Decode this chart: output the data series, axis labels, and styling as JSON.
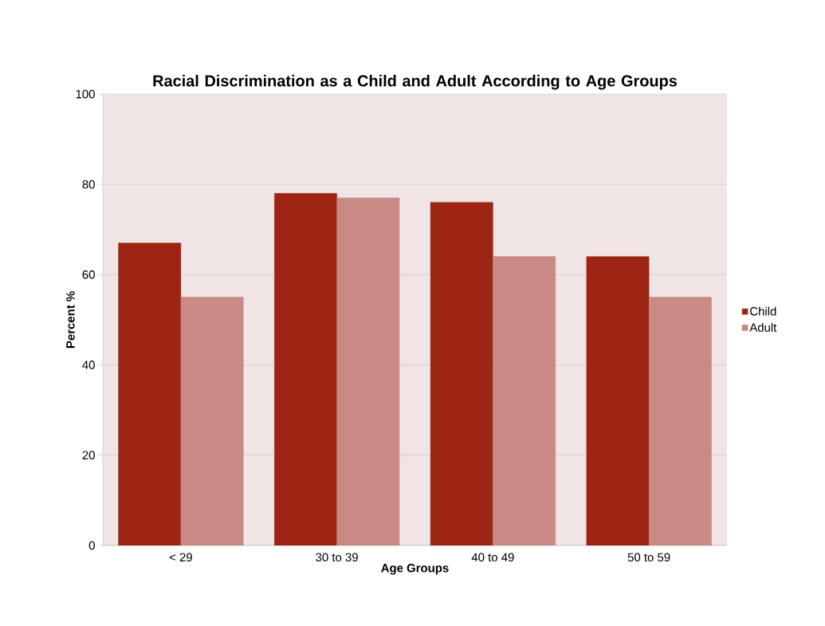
{
  "chart_data": {
    "type": "bar",
    "title": "Racial Discrimination as a Child and Adult According to Age Groups",
    "xlabel": "Age Groups",
    "ylabel": "Percent %",
    "categories": [
      "< 29",
      "30 to 39",
      "40 to 49",
      "50 to 59"
    ],
    "series": [
      {
        "name": "Child",
        "color": "#9e2514",
        "values": [
          67,
          78,
          76,
          64
        ]
      },
      {
        "name": "Adult",
        "color": "#c98a84",
        "values": [
          55,
          77,
          64,
          55
        ]
      }
    ],
    "ylim": [
      0,
      100
    ],
    "yticks": [
      0,
      20,
      40,
      60,
      80,
      100
    ],
    "grid": "y",
    "legend": "right"
  }
}
